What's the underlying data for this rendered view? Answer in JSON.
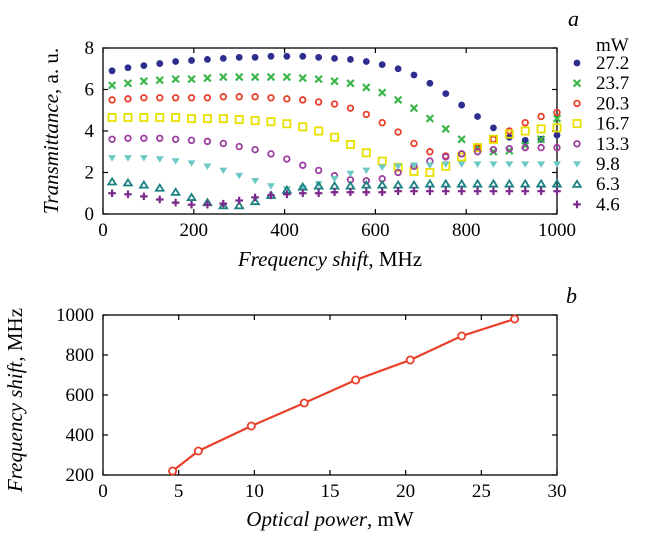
{
  "chart_data": [
    {
      "panel": "a",
      "type": "scatter",
      "panel_label": "a",
      "xlabel_italic": "Frequency shift",
      "xlabel_unit": ", MHz",
      "ylabel_italic": "Transmittance",
      "ylabel_unit": ", a. u.",
      "xlim": [
        0,
        1000
      ],
      "ylim": [
        0,
        8
      ],
      "xticks": [
        0,
        200,
        400,
        600,
        800,
        1000
      ],
      "yticks": [
        0,
        2,
        4,
        6,
        8
      ],
      "legend_title": "mW",
      "legend_position": "right",
      "grid": false,
      "x": [
        20,
        55,
        90,
        125,
        160,
        195,
        230,
        265,
        300,
        335,
        370,
        405,
        440,
        475,
        510,
        545,
        580,
        615,
        650,
        685,
        720,
        755,
        790,
        825,
        860,
        895,
        930,
        965,
        1000
      ],
      "series": [
        {
          "name": "27.2",
          "marker": "circle-filled",
          "color": "#2e2e8f",
          "values": [
            6.9,
            7.05,
            7.15,
            7.25,
            7.35,
            7.4,
            7.45,
            7.5,
            7.55,
            7.55,
            7.6,
            7.6,
            7.6,
            7.55,
            7.5,
            7.45,
            7.35,
            7.2,
            7.0,
            6.7,
            6.3,
            5.8,
            5.25,
            4.7,
            4.15,
            3.7,
            3.55,
            3.6,
            3.8
          ]
        },
        {
          "name": "23.7",
          "marker": "x",
          "color": "#3cb64a",
          "values": [
            6.2,
            6.3,
            6.4,
            6.45,
            6.5,
            6.5,
            6.55,
            6.6,
            6.6,
            6.6,
            6.6,
            6.6,
            6.55,
            6.5,
            6.4,
            6.3,
            6.1,
            5.85,
            5.5,
            5.1,
            4.6,
            4.1,
            3.6,
            3.2,
            3.0,
            3.05,
            3.3,
            3.6,
            4.6
          ]
        },
        {
          "name": "20.3",
          "marker": "circle-open",
          "color": "#e8402a",
          "values": [
            5.5,
            5.55,
            5.6,
            5.6,
            5.6,
            5.6,
            5.6,
            5.65,
            5.65,
            5.65,
            5.6,
            5.55,
            5.5,
            5.4,
            5.3,
            5.1,
            4.8,
            4.4,
            3.95,
            3.4,
            3.0,
            2.8,
            2.9,
            3.2,
            3.6,
            4.0,
            4.4,
            4.7,
            4.9
          ]
        },
        {
          "name": "16.7",
          "marker": "square-open",
          "color": "#e8e000",
          "values": [
            4.65,
            4.65,
            4.65,
            4.65,
            4.65,
            4.6,
            4.6,
            4.6,
            4.55,
            4.5,
            4.45,
            4.35,
            4.2,
            4.0,
            3.7,
            3.35,
            2.95,
            2.55,
            2.25,
            2.05,
            2.0,
            2.3,
            2.75,
            3.2,
            3.6,
            3.85,
            4.0,
            4.1,
            4.15
          ]
        },
        {
          "name": "13.3",
          "marker": "circle-open",
          "color": "#9b3fa0",
          "values": [
            3.6,
            3.65,
            3.65,
            3.65,
            3.6,
            3.55,
            3.5,
            3.4,
            3.25,
            3.1,
            2.9,
            2.65,
            2.35,
            2.1,
            1.85,
            1.65,
            1.6,
            1.7,
            2.0,
            2.3,
            2.55,
            2.75,
            2.9,
            3.0,
            3.1,
            3.15,
            3.2,
            3.2,
            3.2
          ]
        },
        {
          "name": "9.8",
          "marker": "triangle-down",
          "color": "#6cc9c4",
          "values": [
            2.7,
            2.7,
            2.7,
            2.65,
            2.55,
            2.45,
            2.3,
            2.1,
            1.85,
            1.6,
            1.35,
            1.2,
            1.25,
            1.45,
            1.7,
            1.95,
            2.1,
            2.25,
            2.3,
            2.35,
            2.35,
            2.4,
            2.4,
            2.4,
            2.4,
            2.4,
            2.4,
            2.4,
            2.4
          ]
        },
        {
          "name": "6.3",
          "marker": "triangle-up-open",
          "color": "#1a8080",
          "values": [
            1.55,
            1.5,
            1.4,
            1.25,
            1.05,
            0.8,
            0.55,
            0.4,
            0.4,
            0.6,
            0.9,
            1.15,
            1.3,
            1.35,
            1.35,
            1.35,
            1.4,
            1.4,
            1.4,
            1.4,
            1.45,
            1.45,
            1.45,
            1.45,
            1.45,
            1.45,
            1.45,
            1.45,
            1.45
          ]
        },
        {
          "name": "4.6",
          "marker": "plus",
          "color": "#7a2a8a",
          "values": [
            1.0,
            0.95,
            0.85,
            0.7,
            0.55,
            0.45,
            0.45,
            0.5,
            0.65,
            0.8,
            0.9,
            0.95,
            1.0,
            1.0,
            1.05,
            1.05,
            1.05,
            1.05,
            1.1,
            1.1,
            1.1,
            1.1,
            1.1,
            1.1,
            1.1,
            1.1,
            1.1,
            1.1,
            1.1
          ]
        }
      ]
    },
    {
      "panel": "b",
      "type": "line",
      "panel_label": "b",
      "xlabel_italic": "Optical power",
      "xlabel_unit": ", mW",
      "ylabel_italic": "Frequency shift",
      "ylabel_unit": ", MHz",
      "xlim": [
        0,
        30
      ],
      "ylim": [
        200,
        1000
      ],
      "xticks": [
        0,
        5,
        10,
        15,
        20,
        25,
        30
      ],
      "yticks": [
        200,
        400,
        600,
        800,
        1000
      ],
      "grid": false,
      "color": "#e8402a",
      "x": [
        4.6,
        6.3,
        9.8,
        13.3,
        16.7,
        20.3,
        23.7,
        27.2
      ],
      "values": [
        220,
        320,
        445,
        560,
        675,
        775,
        895,
        980
      ]
    }
  ]
}
